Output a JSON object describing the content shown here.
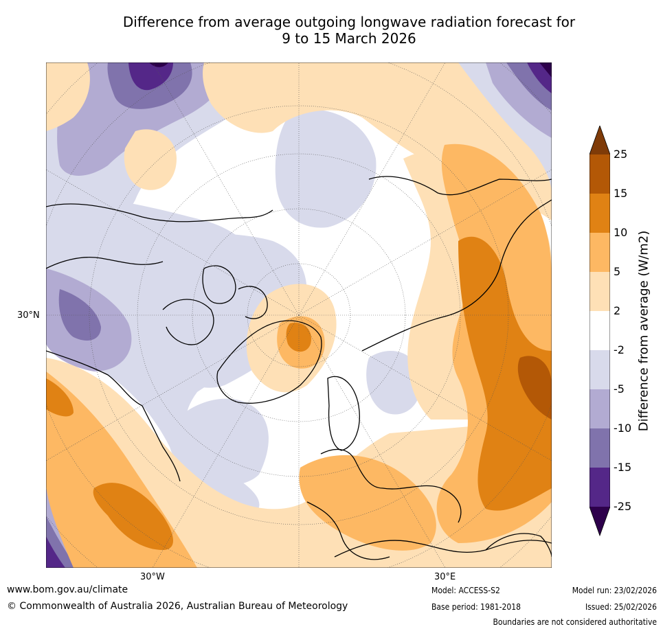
{
  "title": {
    "line1": "Difference from average outgoing longwave radiation forecast for",
    "line2": "9 to 15 March 2026"
  },
  "axis_labels": {
    "lat_30n": "30°N",
    "lon_30w": "30°W",
    "lon_30e": "30°E"
  },
  "colorbar": {
    "title": "Difference from average (W/m2)",
    "ticks": [
      "25",
      "15",
      "10",
      "5",
      "2",
      "-2",
      "-5",
      "-10",
      "-15",
      "-25"
    ],
    "colors": {
      "above_25": "#7f3b08",
      "15_25": "#b35806",
      "10_15": "#e08214",
      "5_10": "#fdb863",
      "2_5": "#fee0b6",
      "neutral": "#ffffff",
      "m2_m5": "#d8daeb",
      "m5_m10": "#b2abd2",
      "m10_m15": "#8073ac",
      "m15_m25": "#542788",
      "below_m25": "#2d004b"
    }
  },
  "footer": {
    "website": "www.bom.gov.au/climate",
    "copyright": "© Commonwealth of Australia 2026, Australian Bureau of Meteorology",
    "model": "Model: ACCESS-S2",
    "base_period": "Base period: 1981-2018",
    "model_run": "Model run: 23/02/2026",
    "issued": "Issued: 25/02/2026",
    "disclaimer": "Boundaries are not considered authoritative"
  }
}
